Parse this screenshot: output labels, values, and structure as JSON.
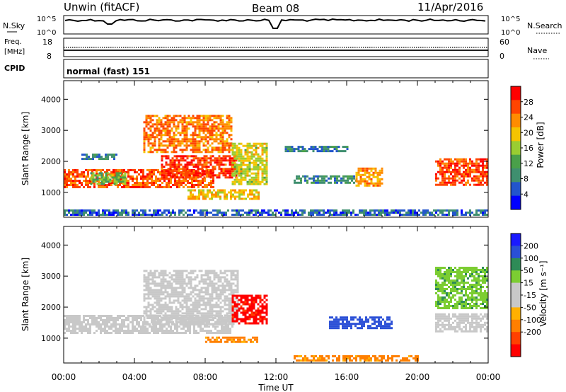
{
  "header": {
    "site": "Unwin (fitACF)",
    "beam": "Beam 08",
    "date": "11/Apr/2016"
  },
  "top_panels": {
    "nsky": {
      "label": "N.Sky",
      "ticks_left": [
        "10^5",
        "10^0"
      ],
      "ticks_right": [
        "10^5",
        "10^0"
      ],
      "right_label": "N.Search"
    },
    "freq": {
      "label_line1": "Freq.",
      "label_line2": "[MHz]",
      "ticks_left": [
        "18",
        "8"
      ],
      "ticks_right": [
        "60",
        "0"
      ],
      "right_label": "Nave"
    },
    "cpid": {
      "label": "CPID",
      "text": "normal (fast) 151"
    }
  },
  "colors": {
    "power_scale": [
      "#0000ff",
      "#2255cc",
      "#3f8f6f",
      "#4aa04a",
      "#9acd32",
      "#f5c400",
      "#ff8c00",
      "#ff4500",
      "#ff0000"
    ],
    "velocity_scale": [
      "#1a1aff",
      "#2a4fd6",
      "#2e8b57",
      "#7ccd32",
      "#c8c8c8",
      "#c8c8c8",
      "#ffb000",
      "#ff7f00",
      "#ff4000",
      "#ff0000"
    ]
  },
  "chart_data": [
    {
      "type": "heatmap",
      "panel": "power",
      "ylabel": "Slant Range [km]",
      "yticks": [
        "1000",
        "2000",
        "3000",
        "4000"
      ],
      "ylim": [
        200,
        4600
      ],
      "xlim": [
        0,
        24
      ],
      "colorbar": {
        "label": "Power [dB]",
        "ticks": [
          "4",
          "8",
          "12",
          "16",
          "20",
          "24",
          "28"
        ],
        "range": [
          0,
          32
        ]
      },
      "regions": [
        {
          "t0": 0.0,
          "t1": 8.5,
          "r0": 1150,
          "r1": 1750,
          "value": 26
        },
        {
          "t0": 1.5,
          "t1": 3.5,
          "r0": 1300,
          "r1": 1650,
          "value": 14
        },
        {
          "t0": 5.5,
          "t1": 9.8,
          "r0": 1450,
          "r1": 2200,
          "value": 28
        },
        {
          "t0": 4.5,
          "t1": 9.5,
          "r0": 2300,
          "r1": 3500,
          "value": 24
        },
        {
          "t0": 1.0,
          "t1": 3.0,
          "r0": 2050,
          "r1": 2250,
          "value": 8
        },
        {
          "t0": 7.0,
          "t1": 11.0,
          "r0": 800,
          "r1": 1100,
          "value": 20
        },
        {
          "t0": 9.5,
          "t1": 11.5,
          "r0": 1300,
          "r1": 2600,
          "value": 18
        },
        {
          "t0": 13.0,
          "t1": 16.5,
          "r0": 1300,
          "r1": 1550,
          "value": 10
        },
        {
          "t0": 16.5,
          "t1": 18.0,
          "r0": 1250,
          "r1": 1800,
          "value": 22
        },
        {
          "t0": 12.5,
          "t1": 16.0,
          "r0": 2300,
          "r1": 2500,
          "value": 8
        },
        {
          "t0": 21.0,
          "t1": 24.0,
          "r0": 1250,
          "r1": 2100,
          "value": 27
        },
        {
          "t0": 0.0,
          "t1": 24.0,
          "r0": 250,
          "r1": 450,
          "value": 6
        }
      ]
    },
    {
      "type": "heatmap",
      "panel": "velocity",
      "ylabel": "Slant Range [km]",
      "xlabel": "Time UT",
      "yticks": [
        "1000",
        "2000",
        "3000",
        "4000"
      ],
      "xticks": [
        "00:00",
        "04:00",
        "08:00",
        "12:00",
        "16:00",
        "20:00",
        "00:00"
      ],
      "ylim": [
        200,
        4600
      ],
      "xlim": [
        0,
        24
      ],
      "colorbar": {
        "label": "Velocity [m s⁻¹]",
        "ticks": [
          "200",
          "100",
          "50",
          "15",
          "-15",
          "-50",
          "-100",
          "-200"
        ],
        "range": [
          -250,
          250
        ]
      },
      "regions": [
        {
          "t0": 0.0,
          "t1": 9.5,
          "r0": 1150,
          "r1": 1750,
          "value": 0
        },
        {
          "t0": 4.5,
          "t1": 9.8,
          "r0": 1450,
          "r1": 3200,
          "value": 0
        },
        {
          "t0": 9.5,
          "t1": 11.5,
          "r0": 1450,
          "r1": 2400,
          "value": -210
        },
        {
          "t0": 8.0,
          "t1": 11.0,
          "r0": 900,
          "r1": 1050,
          "value": -60
        },
        {
          "t0": 13.0,
          "t1": 20.0,
          "r0": 250,
          "r1": 450,
          "value": -60
        },
        {
          "t0": 15.0,
          "t1": 18.5,
          "r0": 1300,
          "r1": 1700,
          "value": 180
        },
        {
          "t0": 21.0,
          "t1": 24.0,
          "r0": 1250,
          "r1": 1800,
          "value": 0
        },
        {
          "t0": 21.0,
          "t1": 24.0,
          "r0": 2000,
          "r1": 3300,
          "value": 40
        }
      ]
    }
  ]
}
